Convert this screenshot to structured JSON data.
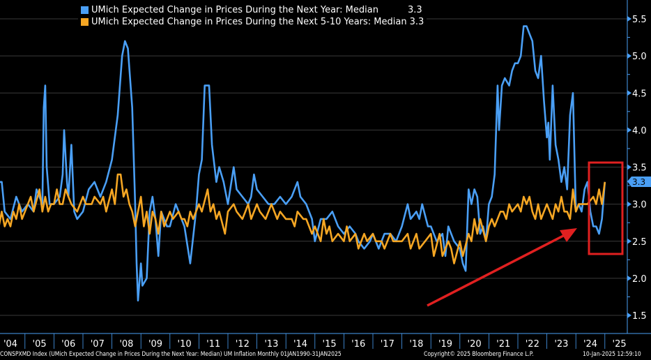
{
  "chart_data": {
    "type": "line",
    "title": "",
    "xlabel": "",
    "ylabel": "",
    "xlim": [
      2004.06,
      2025.8
    ],
    "ylim": [
      1.5,
      5.5
    ],
    "yticks": [
      "1.5",
      "2.0",
      "2.5",
      "3.0",
      "3.5",
      "4.0",
      "4.5",
      "5.0",
      "5.5"
    ],
    "ytick_values": [
      1.5,
      2.0,
      2.5,
      3.0,
      3.5,
      4.0,
      4.5,
      5.0,
      5.5
    ],
    "xticks": [
      "'04",
      "'05",
      "'06",
      "'07",
      "'08",
      "'09",
      "'10",
      "'11",
      "'12",
      "'13",
      "'14",
      "'15",
      "'16",
      "'17",
      "'18",
      "'19",
      "'20",
      "'21",
      "'22",
      "'23",
      "'24",
      "'25"
    ],
    "grid": true,
    "legend_position": "top-left",
    "current_value_tag": "3.3",
    "series": [
      {
        "name": "UMich Expected Change in Prices During the Next Year: Median",
        "last": "3.3",
        "color": "#4a9ff5",
        "x": [
          2004.0,
          2004.1,
          2004.2,
          2004.3,
          2004.5,
          2004.7,
          2004.9,
          2005.1,
          2005.3,
          2005.4,
          2005.5,
          2005.6,
          2005.65,
          2005.7,
          2005.75,
          2005.85,
          2006.0,
          2006.2,
          2006.3,
          2006.35,
          2006.45,
          2006.5,
          2006.6,
          2006.7,
          2006.8,
          2007.0,
          2007.2,
          2007.4,
          2007.5,
          2007.6,
          2007.8,
          2008.0,
          2008.2,
          2008.35,
          2008.45,
          2008.55,
          2008.7,
          2008.8,
          2008.85,
          2008.9,
          2009.0,
          2009.05,
          2009.2,
          2009.3,
          2009.4,
          2009.5,
          2009.6,
          2009.7,
          2009.9,
          2010.0,
          2010.2,
          2010.4,
          2010.5,
          2010.7,
          2010.9,
          2011.0,
          2011.1,
          2011.2,
          2011.35,
          2011.45,
          2011.6,
          2011.7,
          2011.85,
          2012.0,
          2012.2,
          2012.3,
          2012.5,
          2012.7,
          2012.8,
          2012.9,
          2013.0,
          2013.2,
          2013.4,
          2013.6,
          2013.8,
          2014.0,
          2014.2,
          2014.4,
          2014.5,
          2014.7,
          2014.9,
          2015.0,
          2015.2,
          2015.4,
          2015.6,
          2015.8,
          2016.0,
          2016.2,
          2016.4,
          2016.5,
          2016.7,
          2016.9,
          2017.0,
          2017.2,
          2017.4,
          2017.6,
          2017.8,
          2018.0,
          2018.2,
          2018.3,
          2018.5,
          2018.6,
          2018.7,
          2018.9,
          2019.0,
          2019.2,
          2019.4,
          2019.5,
          2019.6,
          2019.8,
          2020.0,
          2020.1,
          2020.2,
          2020.3,
          2020.4,
          2020.5,
          2020.6,
          2020.7,
          2020.8,
          2020.9,
          2021.0,
          2021.1,
          2021.2,
          2021.3,
          2021.35,
          2021.45,
          2021.55,
          2021.7,
          2021.8,
          2021.9,
          2022.0,
          2022.1,
          2022.2,
          2022.3,
          2022.4,
          2022.5,
          2022.6,
          2022.7,
          2022.8,
          2022.9,
          2023.0,
          2023.05,
          2023.1,
          2023.2,
          2023.3,
          2023.4,
          2023.5,
          2023.6,
          2023.7,
          2023.8,
          2023.9,
          2024.0,
          2024.1,
          2024.2,
          2024.3,
          2024.4,
          2024.5,
          2024.6,
          2024.7,
          2024.8,
          2024.9,
          2025.0
        ],
        "y": [
          3.0,
          3.3,
          3.3,
          2.9,
          2.8,
          3.1,
          2.9,
          3.0,
          2.9,
          3.2,
          3.1,
          3.0,
          4.3,
          4.6,
          3.5,
          3.0,
          3.0,
          3.1,
          3.4,
          4.0,
          3.3,
          3.1,
          3.8,
          2.9,
          2.8,
          2.9,
          3.2,
          3.3,
          3.2,
          3.1,
          3.3,
          3.6,
          4.2,
          5.0,
          5.2,
          5.1,
          4.3,
          3.0,
          2.2,
          1.7,
          2.2,
          1.9,
          2.0,
          2.9,
          3.1,
          2.8,
          2.3,
          2.9,
          2.7,
          2.7,
          3.0,
          2.8,
          2.7,
          2.2,
          2.9,
          3.4,
          3.6,
          4.6,
          4.6,
          3.8,
          3.3,
          3.5,
          3.3,
          3.0,
          3.5,
          3.2,
          3.1,
          3.0,
          3.1,
          3.4,
          3.2,
          3.1,
          3.0,
          3.0,
          3.1,
          3.0,
          3.1,
          3.3,
          3.1,
          3.0,
          2.8,
          2.5,
          2.8,
          2.8,
          2.9,
          2.7,
          2.6,
          2.7,
          2.6,
          2.5,
          2.4,
          2.5,
          2.6,
          2.4,
          2.6,
          2.6,
          2.5,
          2.7,
          3.0,
          2.8,
          2.9,
          2.8,
          3.0,
          2.7,
          2.7,
          2.5,
          2.6,
          2.3,
          2.7,
          2.5,
          2.4,
          2.2,
          2.1,
          3.2,
          3.0,
          3.2,
          3.1,
          2.6,
          2.7,
          2.5,
          3.0,
          3.1,
          3.4,
          4.6,
          4.0,
          4.6,
          4.7,
          4.6,
          4.8,
          4.9,
          4.9,
          5.0,
          5.4,
          5.4,
          5.3,
          5.2,
          4.8,
          4.7,
          5.0,
          4.4,
          3.9,
          4.1,
          3.6,
          4.6,
          3.8,
          3.6,
          3.3,
          3.5,
          3.2,
          4.2,
          4.5,
          2.9,
          3.0,
          2.9,
          3.2,
          3.3,
          2.9,
          2.7,
          2.7,
          2.6,
          2.8,
          3.3
        ]
      },
      {
        "name": "UMich Expected Change in Prices During the Next 5-10 Years: Median",
        "last": "3.3",
        "color": "#f5a623",
        "x": [
          2004.0,
          2004.1,
          2004.2,
          2004.3,
          2004.4,
          2004.5,
          2004.6,
          2004.7,
          2004.8,
          2004.9,
          2005.0,
          2005.2,
          2005.3,
          2005.5,
          2005.6,
          2005.7,
          2005.8,
          2005.9,
          2006.0,
          2006.1,
          2006.2,
          2006.3,
          2006.4,
          2006.5,
          2006.6,
          2006.8,
          2007.0,
          2007.1,
          2007.3,
          2007.4,
          2007.6,
          2007.7,
          2007.8,
          2008.0,
          2008.1,
          2008.2,
          2008.3,
          2008.4,
          2008.5,
          2008.6,
          2008.7,
          2008.8,
          2008.9,
          2009.0,
          2009.1,
          2009.2,
          2009.3,
          2009.4,
          2009.5,
          2009.6,
          2009.7,
          2009.8,
          2010.0,
          2010.1,
          2010.3,
          2010.4,
          2010.5,
          2010.6,
          2010.7,
          2010.8,
          2011.0,
          2011.1,
          2011.3,
          2011.4,
          2011.5,
          2011.6,
          2011.7,
          2011.9,
          2012.0,
          2012.2,
          2012.3,
          2012.5,
          2012.6,
          2012.7,
          2012.8,
          2013.0,
          2013.1,
          2013.3,
          2013.4,
          2013.5,
          2013.7,
          2013.8,
          2014.0,
          2014.2,
          2014.3,
          2014.4,
          2014.6,
          2014.7,
          2014.9,
          2015.0,
          2015.2,
          2015.3,
          2015.4,
          2015.5,
          2015.6,
          2015.8,
          2016.0,
          2016.1,
          2016.2,
          2016.4,
          2016.5,
          2016.7,
          2016.8,
          2017.0,
          2017.1,
          2017.3,
          2017.4,
          2017.6,
          2017.7,
          2017.9,
          2018.0,
          2018.2,
          2018.3,
          2018.5,
          2018.6,
          2018.8,
          2019.0,
          2019.1,
          2019.3,
          2019.4,
          2019.6,
          2019.7,
          2019.8,
          2020.0,
          2020.1,
          2020.3,
          2020.4,
          2020.5,
          2020.6,
          2020.7,
          2020.9,
          2021.0,
          2021.1,
          2021.2,
          2021.4,
          2021.5,
          2021.6,
          2021.7,
          2021.8,
          2022.0,
          2022.1,
          2022.2,
          2022.3,
          2022.4,
          2022.5,
          2022.6,
          2022.7,
          2022.8,
          2022.9,
          2023.0,
          2023.1,
          2023.2,
          2023.3,
          2023.4,
          2023.5,
          2023.6,
          2023.7,
          2023.8,
          2023.9,
          2024.0,
          2024.1,
          2024.2,
          2024.3,
          2024.4,
          2024.6,
          2024.7,
          2024.8,
          2024.9,
          2025.0
        ],
        "y": [
          2.9,
          2.7,
          2.9,
          2.7,
          2.8,
          2.7,
          2.9,
          2.8,
          3.0,
          2.8,
          2.9,
          3.1,
          2.9,
          3.2,
          2.9,
          3.1,
          2.9,
          3.0,
          3.0,
          3.2,
          3.0,
          3.0,
          3.2,
          3.1,
          3.0,
          2.9,
          3.1,
          3.0,
          3.0,
          3.1,
          3.0,
          3.1,
          2.9,
          3.2,
          3.0,
          3.4,
          3.4,
          3.1,
          3.2,
          3.0,
          2.9,
          2.7,
          2.9,
          3.1,
          2.7,
          2.9,
          2.6,
          2.9,
          2.8,
          2.6,
          2.9,
          2.7,
          2.9,
          2.8,
          2.9,
          2.8,
          2.8,
          2.7,
          2.9,
          2.8,
          3.0,
          2.9,
          3.2,
          2.9,
          3.0,
          2.8,
          2.9,
          2.6,
          2.9,
          3.0,
          2.9,
          2.8,
          2.9,
          3.0,
          2.8,
          3.0,
          2.9,
          2.8,
          2.9,
          3.0,
          2.8,
          2.9,
          2.8,
          2.8,
          2.7,
          2.9,
          2.8,
          2.8,
          2.6,
          2.7,
          2.5,
          2.8,
          2.6,
          2.7,
          2.5,
          2.6,
          2.5,
          2.7,
          2.5,
          2.6,
          2.4,
          2.6,
          2.5,
          2.6,
          2.5,
          2.5,
          2.4,
          2.6,
          2.5,
          2.5,
          2.5,
          2.6,
          2.4,
          2.6,
          2.4,
          2.5,
          2.6,
          2.3,
          2.6,
          2.3,
          2.5,
          2.4,
          2.2,
          2.5,
          2.3,
          2.6,
          2.5,
          2.8,
          2.6,
          2.8,
          2.5,
          2.7,
          2.8,
          2.7,
          2.9,
          2.9,
          2.8,
          3.0,
          2.9,
          3.0,
          2.9,
          3.1,
          3.0,
          3.1,
          2.9,
          2.8,
          3.0,
          2.8,
          2.9,
          3.0,
          2.9,
          2.8,
          3.0,
          2.9,
          3.1,
          2.9,
          2.9,
          2.8,
          3.2,
          2.9,
          3.0,
          3.0,
          3.0,
          3.0,
          3.1,
          3.0,
          3.2,
          3.0,
          3.3
        ]
      }
    ]
  },
  "footer": {
    "source": "CONSPXMD Index (UMich Expected Change in Prices During the Next Year: Median) UM Inflation  Monthly 01JAN1990-31JAN2025",
    "copyright": "Copyright© 2025 Bloomberg Finance L.P.",
    "timestamp": "10-Jan-2025 12:59:10"
  },
  "colors": {
    "annotation": "#e02020",
    "grid": "#3a3a3a",
    "axis": "#4a9ff5"
  }
}
